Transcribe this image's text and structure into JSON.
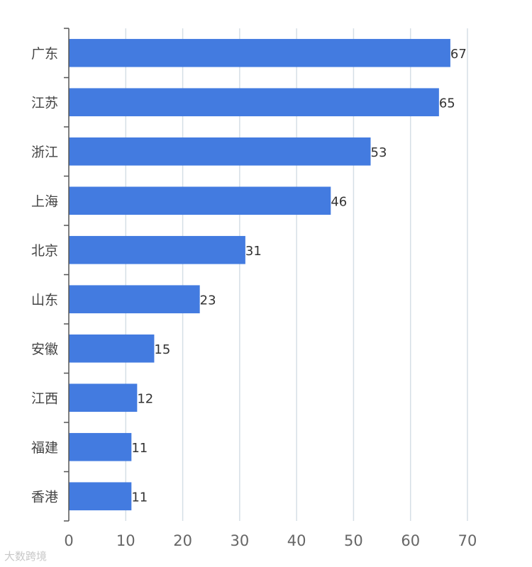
{
  "chart_data": {
    "type": "bar",
    "orientation": "horizontal",
    "categories": [
      "广东",
      "江苏",
      "浙江",
      "上海",
      "北京",
      "山东",
      "安徽",
      "江西",
      "福建",
      "香港"
    ],
    "values": [
      67,
      65,
      53,
      46,
      31,
      23,
      15,
      12,
      11,
      11
    ],
    "data_labels": [
      "67",
      "65",
      "53",
      "46",
      "31",
      "23",
      "15",
      "12",
      "11",
      "11"
    ],
    "xlim": [
      0,
      70
    ],
    "x_ticks": [
      "0",
      "10",
      "20",
      "30",
      "40",
      "50",
      "60",
      "70"
    ],
    "grid": "vertical",
    "bar_color": "#437be0"
  },
  "watermark": "大数跨境"
}
